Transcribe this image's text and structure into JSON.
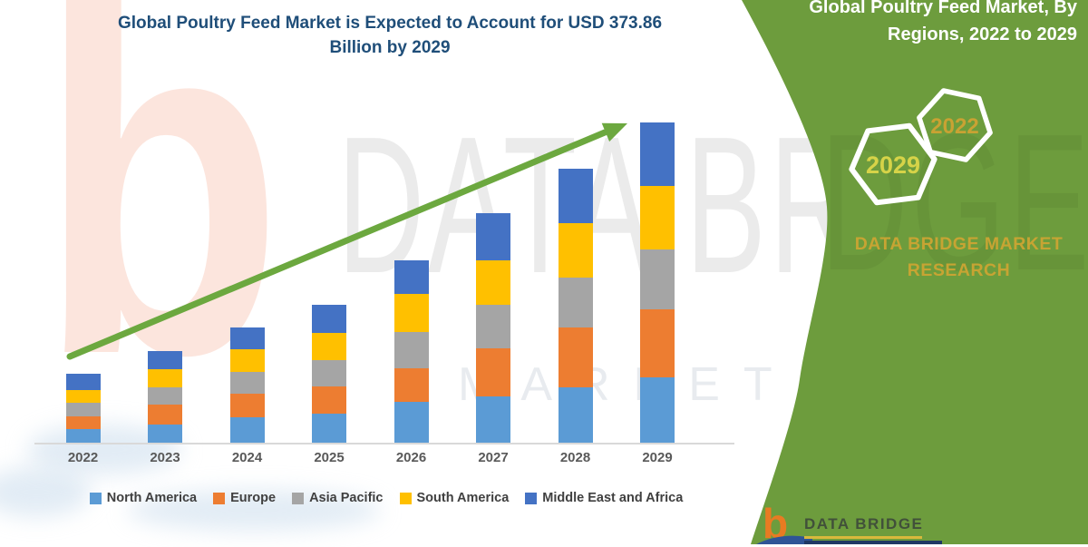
{
  "title": {
    "line1": "Global Poultry Feed Market is Expected to Account for USD 373.86",
    "line2": "Billion by 2029",
    "full": "Global Poultry Feed Market is Expected to Account for USD 373.86 Billion by 2029",
    "color": "#1f4e79"
  },
  "panel": {
    "heading_line1": "Global Poultry Feed Market, By",
    "heading_line2": "Regions, 2022 to 2029",
    "hex_top_label": "2022",
    "hex_bottom_label": "2029",
    "brand_line1": "DATA BRIDGE MARKET",
    "brand_line2": "RESEARCH",
    "bg_color": "#6d9c3d",
    "gold_color": "#c7a433",
    "hex_top_text_color": "#c9a233",
    "hex_bottom_text_color": "#d6d348"
  },
  "watermark": {
    "logo_glyph": "b",
    "title_text": "DATA BRI",
    "title_text_panel": "DGE",
    "sub_text": "MARKET RESEARCH"
  },
  "footer": {
    "logo_glyph": "b",
    "brand": "DATA BRIDGE"
  },
  "chart_data": {
    "type": "bar",
    "stacked": true,
    "title": "Global Poultry Feed Market is Expected to Account for USD 373.86 Billion by 2029",
    "units": "USD Billion",
    "categories": [
      "2022",
      "2023",
      "2024",
      "2025",
      "2026",
      "2027",
      "2028",
      "2029"
    ],
    "series": [
      {
        "name": "North America",
        "color": "#5B9BD5",
        "values": [
          15.5,
          21.2,
          29.4,
          33.6,
          47.4,
          53.7,
          65.0,
          76.6
        ]
      },
      {
        "name": "Europe",
        "color": "#ED7D31",
        "values": [
          15.2,
          23.0,
          28.3,
          31.8,
          40.0,
          56.5,
          70.0,
          79.5
        ]
      },
      {
        "name": "Asia Pacific",
        "color": "#A5A5A5",
        "values": [
          15.9,
          20.1,
          24.7,
          30.7,
          41.7,
          51.2,
          58.3,
          70.0
        ]
      },
      {
        "name": "South America",
        "color": "#FFC000",
        "values": [
          14.8,
          21.9,
          27.2,
          31.8,
          44.8,
          51.2,
          63.6,
          74.2
        ]
      },
      {
        "name": "Middle East and Africa",
        "color": "#4472C4",
        "values": [
          19.4,
          20.9,
          24.7,
          32.9,
          38.9,
          55.1,
          63.6,
          73.56
        ]
      }
    ],
    "totals_estimated": [
      80.8,
      107.1,
      134.3,
      160.8,
      212.8,
      267.7,
      320.5,
      373.86
    ],
    "final_value_label": "USD 373.86 Billion by 2029",
    "ylim": [
      0,
      400
    ],
    "y_axis_visible": false,
    "gridlines": false,
    "legend_position": "bottom",
    "x_label_color": "#595959",
    "trend_arrow": {
      "present": true,
      "color": "#70AD47",
      "direction": "up-right"
    }
  }
}
